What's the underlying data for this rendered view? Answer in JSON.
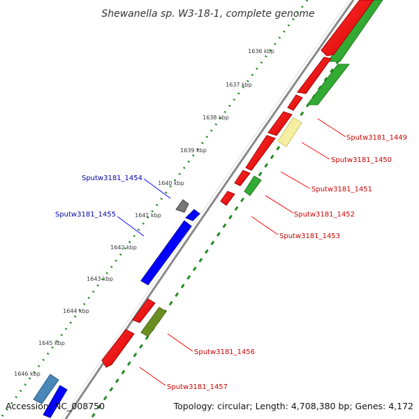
{
  "title": "Shewanella sp. W3-18-1, complete genome",
  "accession_label": "Accession: NC_008750",
  "summary_label": "Topology: circular; Length: 4,708,380 bp; Genes: 4,172",
  "ticks": [
    "1636 kbp",
    "1637 kbp",
    "1638 kbp",
    "1639 kbp",
    "1640 kbp",
    "1641 kbp",
    "1642 kbp",
    "1643 kbp",
    "1644 kbp",
    "1645 kbp",
    "1646 kbp"
  ],
  "gene_labels": {
    "g1449": "Sputw3181_1449",
    "g1450": "Sputw3181_1450",
    "g1451": "Sputw3181_1451",
    "g1452": "Sputw3181_1452",
    "g1453": "Sputw3181_1453",
    "g1454": "Sputw3181_1454",
    "g1455": "Sputw3181_1455",
    "g1456": "Sputw3181_1456",
    "g1457": "Sputw3181_1457"
  },
  "colors": {
    "forward_cds": "#ff0000",
    "reverse_cds": "#0000ff",
    "forward_label": "#cc0000",
    "reverse_label": "#0000aa",
    "green_feature": "#33aa33",
    "olive_feature": "#6b8e23",
    "pale_feature": "#f5eea0",
    "gray_feature": "#777777",
    "teal_feature": "#4a86b8",
    "backbone": "#888888",
    "tick_dots": "#228b22"
  }
}
